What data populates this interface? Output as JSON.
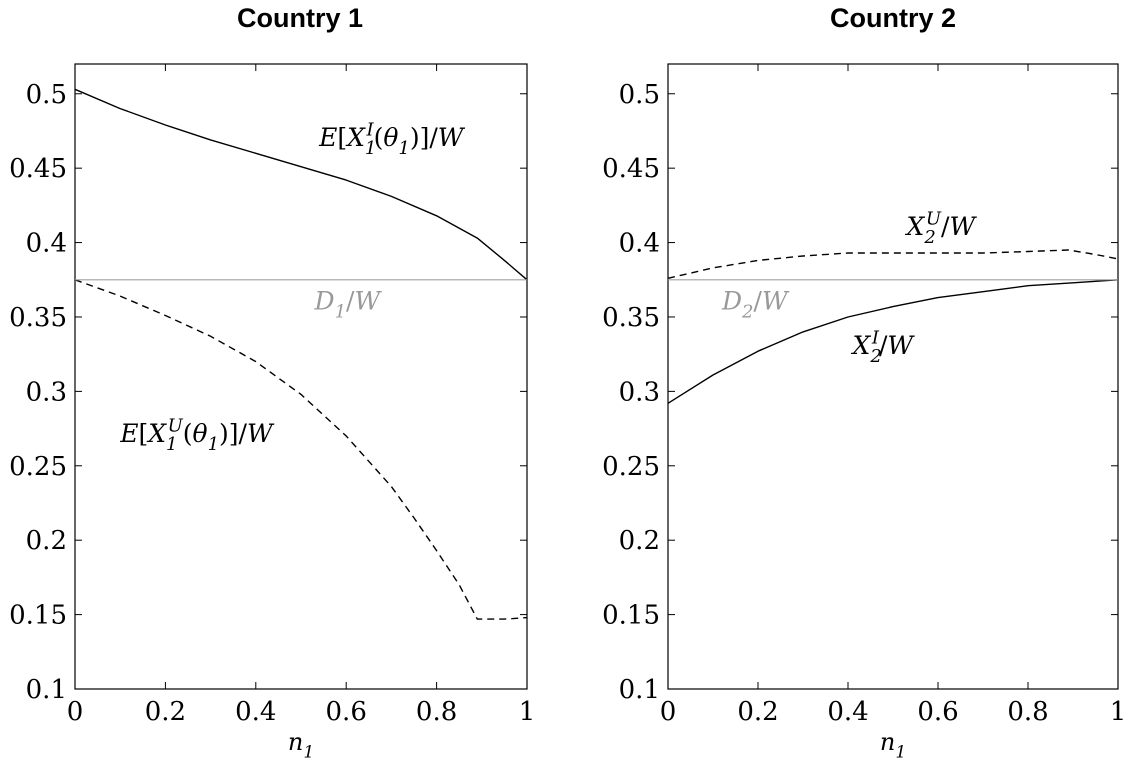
{
  "chart_data": [
    {
      "type": "line",
      "title": "Country 1",
      "xlabel": "n_1",
      "ylabel": "",
      "xlim": [
        0,
        1
      ],
      "ylim": [
        0.1,
        0.52
      ],
      "xticks": [
        0,
        0.2,
        0.4,
        0.6,
        0.8,
        1
      ],
      "xtick_labels": [
        "0",
        "0.2",
        "0.4",
        "0.6",
        "0.8",
        "1"
      ],
      "yticks": [
        0.1,
        0.15,
        0.2,
        0.25,
        0.3,
        0.35,
        0.4,
        0.45,
        0.5
      ],
      "ytick_labels": [
        "0.1",
        "0.15",
        "0.2",
        "0.25",
        "0.3",
        "0.35",
        "0.4",
        "0.45",
        "0.5"
      ],
      "grid": false,
      "series": [
        {
          "name": "E[X_1^I(θ_1)]/W",
          "style": "solid",
          "color": "#000000",
          "x": [
            0,
            0.1,
            0.2,
            0.3,
            0.4,
            0.5,
            0.6,
            0.7,
            0.8,
            0.89,
            0.95,
            1.0
          ],
          "y": [
            0.503,
            0.49,
            0.479,
            0.469,
            0.46,
            0.451,
            0.442,
            0.431,
            0.418,
            0.403,
            0.388,
            0.375
          ]
        },
        {
          "name": "E[X_1^U(θ_1)]/W",
          "style": "dashed",
          "color": "#000000",
          "x": [
            0,
            0.1,
            0.2,
            0.3,
            0.4,
            0.5,
            0.6,
            0.7,
            0.75,
            0.8,
            0.85,
            0.89,
            0.95,
            1.0
          ],
          "y": [
            0.375,
            0.364,
            0.351,
            0.337,
            0.32,
            0.298,
            0.27,
            0.236,
            0.215,
            0.193,
            0.17,
            0.147,
            0.147,
            0.148
          ]
        },
        {
          "name": "D_1/W",
          "style": "solid",
          "color": "#a0a0a0",
          "x": [
            0,
            1
          ],
          "y": [
            0.375,
            0.375
          ]
        }
      ],
      "annotations": [
        {
          "label": "E[X_1^I(θ_1)]/W",
          "x": 0.54,
          "y": 0.465,
          "color": "#000000"
        },
        {
          "label": "D_1/W",
          "x": 0.53,
          "y": 0.355,
          "color": "#999999"
        },
        {
          "label": "E[X_1^U(θ_1)]/W",
          "x": 0.1,
          "y": 0.266,
          "color": "#000000"
        }
      ]
    },
    {
      "type": "line",
      "title": "Country 2",
      "xlabel": "n_1",
      "ylabel": "",
      "xlim": [
        0,
        1
      ],
      "ylim": [
        0.1,
        0.52
      ],
      "xticks": [
        0,
        0.2,
        0.4,
        0.6,
        0.8,
        1
      ],
      "xtick_labels": [
        "0",
        "0.2",
        "0.4",
        "0.6",
        "0.8",
        "1"
      ],
      "yticks": [
        0.1,
        0.15,
        0.2,
        0.25,
        0.3,
        0.35,
        0.4,
        0.45,
        0.5
      ],
      "ytick_labels": [
        "0.1",
        "0.15",
        "0.2",
        "0.25",
        "0.3",
        "0.35",
        "0.4",
        "0.45",
        "0.5"
      ],
      "grid": false,
      "series": [
        {
          "name": "X_2^U/W",
          "style": "dashed",
          "color": "#000000",
          "x": [
            0,
            0.1,
            0.2,
            0.3,
            0.4,
            0.5,
            0.6,
            0.7,
            0.8,
            0.89,
            0.95,
            1.0
          ],
          "y": [
            0.376,
            0.383,
            0.388,
            0.391,
            0.393,
            0.393,
            0.393,
            0.393,
            0.394,
            0.395,
            0.392,
            0.389
          ]
        },
        {
          "name": "X_2^I/W",
          "style": "solid",
          "color": "#000000",
          "x": [
            0,
            0.1,
            0.2,
            0.3,
            0.4,
            0.5,
            0.6,
            0.7,
            0.8,
            0.9,
            1.0
          ],
          "y": [
            0.292,
            0.311,
            0.327,
            0.34,
            0.35,
            0.357,
            0.363,
            0.367,
            0.371,
            0.373,
            0.375
          ]
        },
        {
          "name": "D_2/W",
          "style": "solid",
          "color": "#a0a0a0",
          "x": [
            0,
            1
          ],
          "y": [
            0.375,
            0.375
          ]
        }
      ],
      "annotations": [
        {
          "label": "X_2^U/W",
          "x": 0.53,
          "y": 0.405,
          "color": "#000000"
        },
        {
          "label": "D_2/W",
          "x": 0.12,
          "y": 0.355,
          "color": "#999999"
        },
        {
          "label": "X_2^I/W",
          "x": 0.41,
          "y": 0.325,
          "color": "#000000"
        }
      ]
    }
  ]
}
